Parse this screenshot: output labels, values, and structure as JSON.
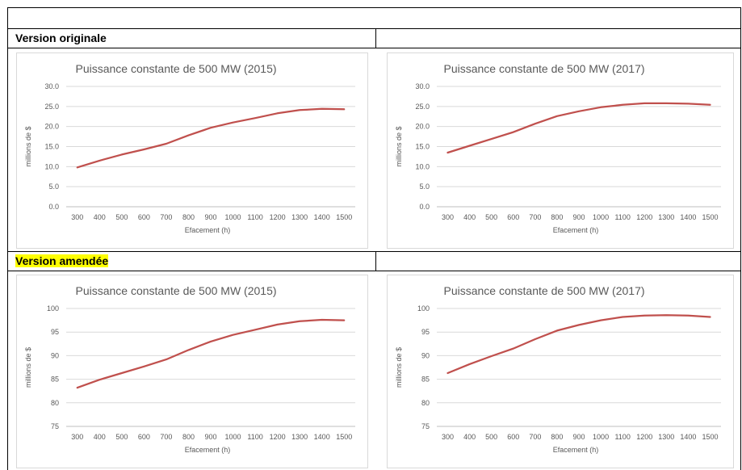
{
  "sections": [
    {
      "label": "Version originale",
      "highlight": false
    },
    {
      "label": "Version amendée",
      "highlight": true,
      "highlight_color": "#ffff00"
    }
  ],
  "chart_data": [
    {
      "type": "line",
      "title": "Puissance constante de 500 MW (2015)",
      "xlabel": "Efacement (h)",
      "ylabel": "millions de $",
      "categories": [
        "300",
        "400",
        "500",
        "600",
        "700",
        "800",
        "900",
        "1000",
        "1100",
        "1200",
        "1300",
        "1400",
        "1500"
      ],
      "y_ticks": [
        "0.0",
        "5.0",
        "10.0",
        "15.0",
        "20.0",
        "25.0",
        "30.0"
      ],
      "ylim": [
        0,
        30
      ],
      "grid": true,
      "line_color": "#c0504d",
      "values": [
        9.8,
        11.5,
        13.0,
        14.3,
        15.7,
        17.8,
        19.7,
        21.0,
        22.1,
        23.3,
        24.1,
        24.4,
        24.3
      ]
    },
    {
      "type": "line",
      "title": "Puissance constante de 500 MW (2017)",
      "xlabel": "Efacement (h)",
      "ylabel": "millions de $",
      "categories": [
        "300",
        "400",
        "500",
        "600",
        "700",
        "800",
        "900",
        "1000",
        "1100",
        "1200",
        "1300",
        "1400",
        "1500"
      ],
      "y_ticks": [
        "0.0",
        "5.0",
        "10.0",
        "15.0",
        "20.0",
        "25.0",
        "30.0"
      ],
      "ylim": [
        0,
        30
      ],
      "grid": true,
      "line_color": "#c0504d",
      "values": [
        13.5,
        15.2,
        16.9,
        18.6,
        20.7,
        22.6,
        23.8,
        24.8,
        25.4,
        25.8,
        25.8,
        25.7,
        25.4
      ]
    },
    {
      "type": "line",
      "title": "Puissance constante de 500 MW (2015)",
      "xlabel": "Efacement (h)",
      "ylabel": "millions de $",
      "categories": [
        "300",
        "400",
        "500",
        "600",
        "700",
        "800",
        "900",
        "1000",
        "1100",
        "1200",
        "1300",
        "1400",
        "1500"
      ],
      "y_ticks": [
        "75",
        "80",
        "85",
        "90",
        "95",
        "100"
      ],
      "ylim": [
        75,
        100
      ],
      "grid": true,
      "line_color": "#c0504d",
      "values": [
        83.2,
        84.9,
        86.3,
        87.7,
        89.2,
        91.2,
        93.0,
        94.4,
        95.5,
        96.6,
        97.3,
        97.6,
        97.5
      ]
    },
    {
      "type": "line",
      "title": "Puissance constante de 500 MW (2017)",
      "xlabel": "Efacement (h)",
      "ylabel": "millions de $",
      "categories": [
        "300",
        "400",
        "500",
        "600",
        "700",
        "800",
        "900",
        "1000",
        "1100",
        "1200",
        "1300",
        "1400",
        "1500"
      ],
      "y_ticks": [
        "75",
        "80",
        "85",
        "90",
        "95",
        "100"
      ],
      "ylim": [
        75,
        100
      ],
      "grid": true,
      "line_color": "#c0504d",
      "values": [
        86.3,
        88.2,
        89.9,
        91.5,
        93.5,
        95.3,
        96.5,
        97.5,
        98.2,
        98.5,
        98.6,
        98.5,
        98.2
      ]
    }
  ]
}
